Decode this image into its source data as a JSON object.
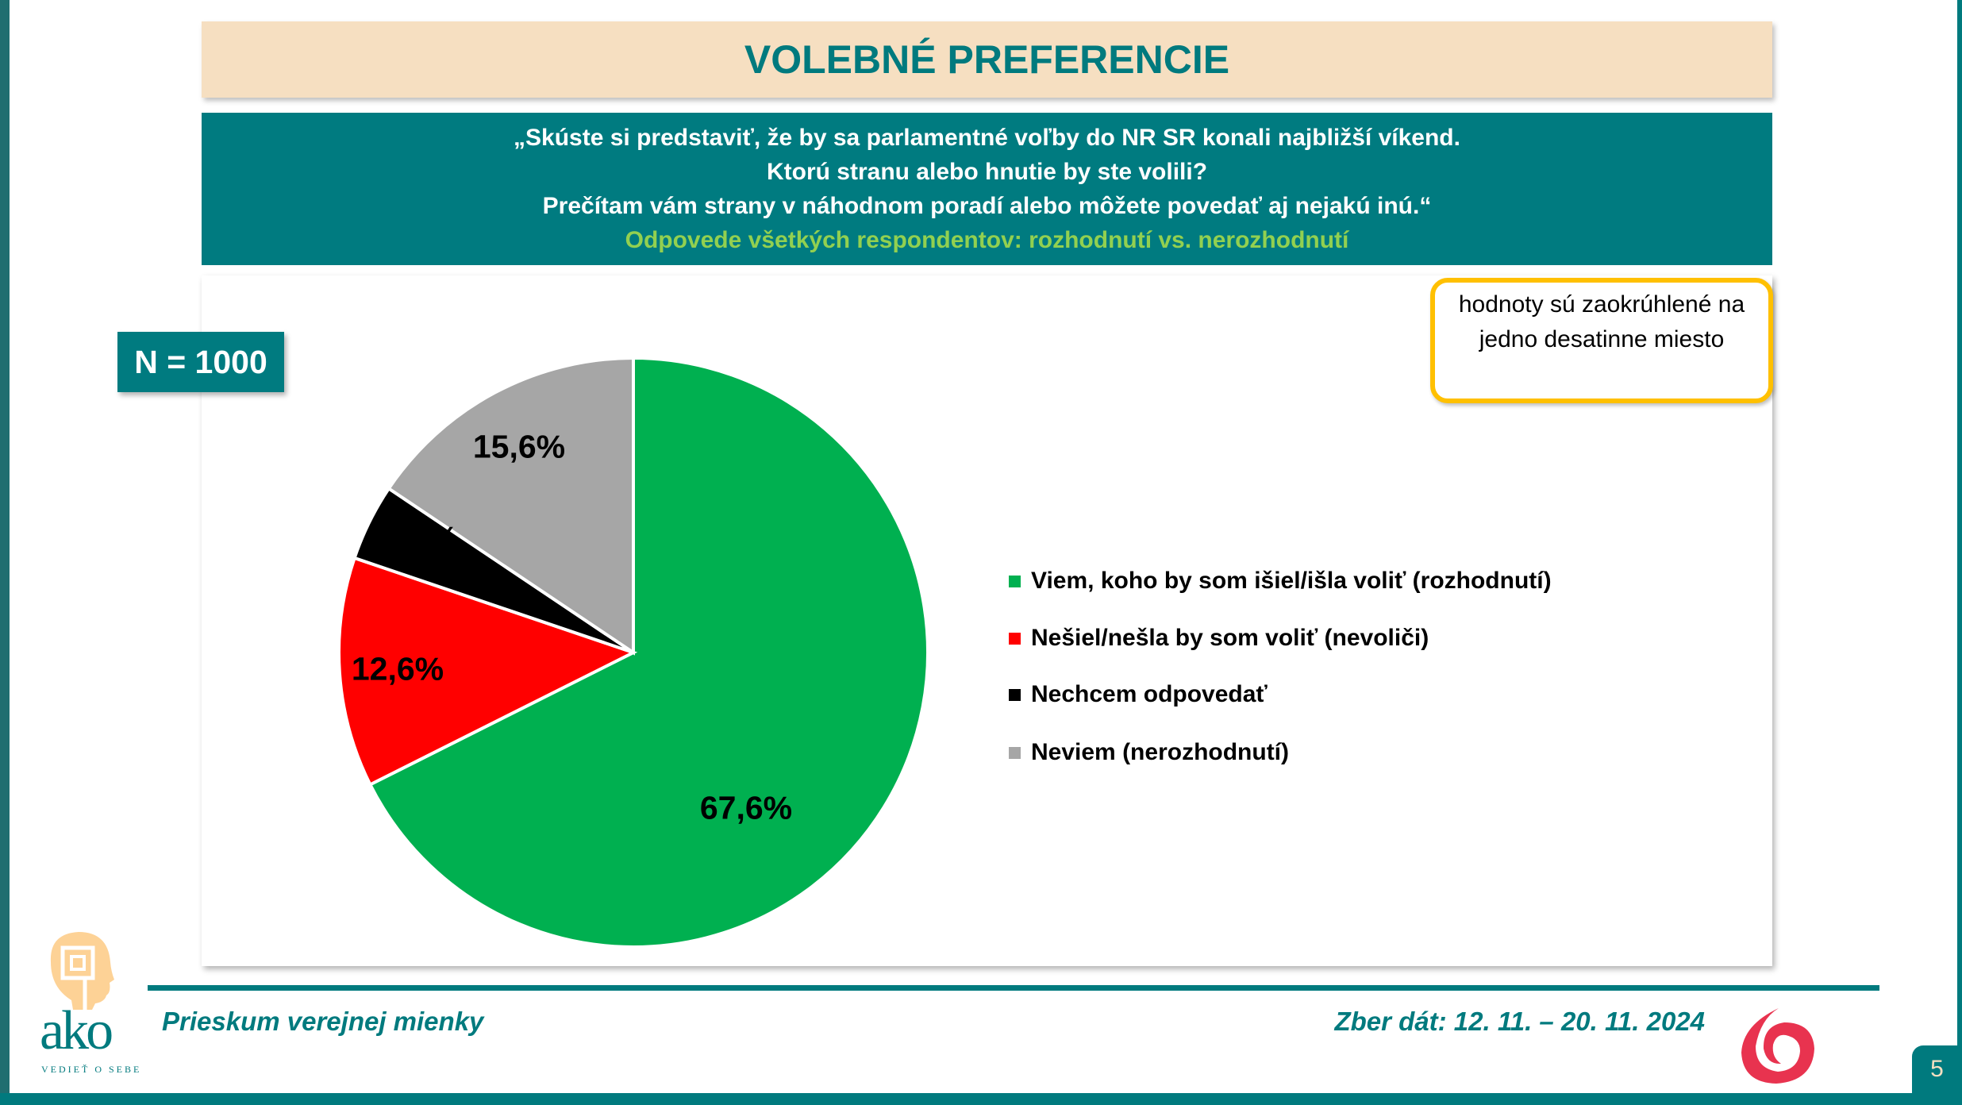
{
  "title": "VOLEBNÉ PREFERENCIE",
  "question": {
    "lines": [
      "„Skúste si predstaviť, že by sa parlamentné voľby do NR SR konali najbližší víkend.",
      "Ktorú stranu alebo hnutie by ste volili?",
      "Prečítam vám strany v náhodnom poradí alebo môžete povedať aj nejakú inú.“"
    ],
    "subtitle": "Odpovede všetkých respondentov: rozhodnutí vs. nerozhodnutí"
  },
  "sample": "N = 1000",
  "note": "hodnoty sú  zaokrúhlené na jedno desatinne miesto",
  "chart_data": {
    "type": "pie",
    "title": "VOLEBNÉ PREFERENCIE",
    "categories": [
      "Viem, koho by som išiel/išla voliť (rozhodnutí)",
      "Nešiel/nešla by som voliť (nevoliči)",
      "Nechcem odpovedať",
      "Neviem (nerozhodnutí)"
    ],
    "values": [
      67.6,
      12.6,
      4.2,
      15.6
    ],
    "labels": [
      "67,6%",
      "12,6%",
      "4,2%",
      "15,6%"
    ],
    "colors": [
      "#00b050",
      "#ff0000",
      "#000000",
      "#a6a6a6"
    ],
    "start": "12 o'clock, clockwise",
    "legend": "right"
  },
  "footer": {
    "left": "Prieskum verejnej mienky",
    "right": "Zber dát: 12. 11. – 20. 11. 2024",
    "page": "5"
  },
  "logo": {
    "brand": "ako",
    "tagline": "VEDIEŤ O SEBE"
  }
}
